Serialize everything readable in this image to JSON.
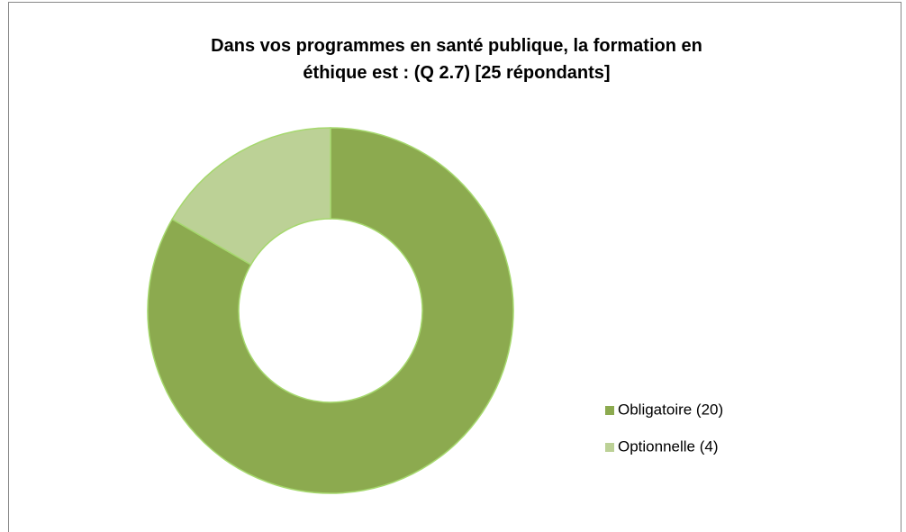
{
  "chart_data": {
    "type": "donut",
    "title": "Dans vos programmes en santé publique, la formation en éthique est : (Q 2.7) [25 répondants]",
    "categories": [
      "Obligatoire (20)",
      "Optionnelle (4)"
    ],
    "values": [
      20,
      4
    ],
    "colors": [
      "#8caa4f",
      "#bcd196"
    ],
    "legend": "right"
  }
}
